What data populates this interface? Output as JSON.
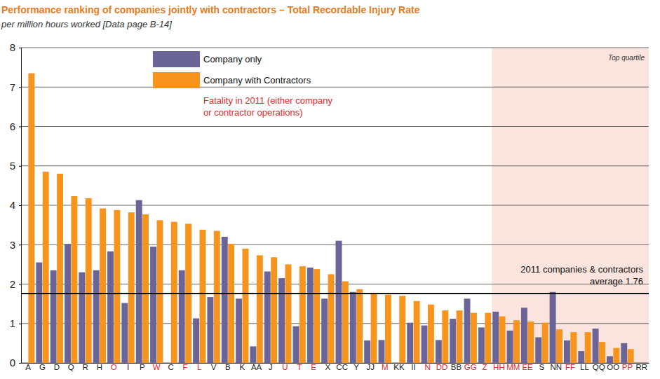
{
  "chart_data": {
    "type": "bar",
    "title": "Performance ranking of companies jointly with contractors – Total Recordable Injury Rate",
    "subtitle": "per million hours worked [Data page B-14]",
    "categories": [
      "A",
      "G",
      "D",
      "Q",
      "R",
      "H",
      "O",
      "I",
      "P",
      "W",
      "C",
      "F",
      "L",
      "V",
      "B",
      "K",
      "AA",
      "J",
      "U",
      "T",
      "E",
      "X",
      "CC",
      "Y",
      "JJ",
      "M",
      "KK",
      "II",
      "N",
      "DD",
      "BB",
      "GG",
      "Z",
      "HH",
      "MM",
      "EE",
      "S",
      "NN",
      "FF",
      "LL",
      "QQ",
      "OO",
      "PP",
      "RR"
    ],
    "fatality": [
      false,
      false,
      false,
      false,
      false,
      false,
      true,
      false,
      false,
      true,
      false,
      true,
      true,
      false,
      false,
      false,
      false,
      false,
      true,
      true,
      true,
      false,
      false,
      false,
      false,
      true,
      false,
      false,
      true,
      true,
      false,
      true,
      true,
      true,
      true,
      true,
      false,
      false,
      true,
      false,
      false,
      false,
      true,
      false
    ],
    "fatality_note": {
      "text": [
        "Fatality in 2011 (either company",
        "or contractor operations)"
      ],
      "color": "#e3262b"
    },
    "series": [
      {
        "name": "Company only",
        "color": "#6b6597",
        "values": [
          null,
          2.55,
          2.35,
          3.02,
          2.3,
          2.35,
          2.83,
          1.52,
          4.13,
          2.95,
          null,
          2.35,
          1.13,
          1.67,
          3.2,
          1.63,
          0.42,
          2.32,
          2.15,
          0.93,
          2.42,
          1.63,
          3.1,
          1.8,
          0.57,
          0.58,
          null,
          1.02,
          0.95,
          0.58,
          1.12,
          1.63,
          0.9,
          1.3,
          0.82,
          1.4,
          0.65,
          1.8,
          0.57,
          0.3,
          0.87,
          0.17,
          0.5,
          null
        ]
      },
      {
        "name": "Company with Contractors",
        "color": "#f7941d",
        "values": [
          7.35,
          4.85,
          4.8,
          4.23,
          4.18,
          3.92,
          3.88,
          3.82,
          3.77,
          3.62,
          3.58,
          3.53,
          3.38,
          3.35,
          3.02,
          2.9,
          2.73,
          2.68,
          2.5,
          2.45,
          2.38,
          2.25,
          2.07,
          1.87,
          1.78,
          1.73,
          1.7,
          1.57,
          1.48,
          1.33,
          1.33,
          1.27,
          1.27,
          1.18,
          1.08,
          1.05,
          1.02,
          0.85,
          0.78,
          0.78,
          0.53,
          0.38,
          0.35,
          null
        ]
      }
    ],
    "reference_line": {
      "value": 1.76,
      "label": [
        "2011 companies & contractors",
        "average 1.76"
      ]
    },
    "top_quartile": {
      "label": "Top quartile",
      "from": "HH",
      "to": "RR"
    },
    "ylim": [
      0,
      8
    ],
    "yticks": [
      0,
      1,
      2,
      3,
      4,
      5,
      6,
      7,
      8
    ],
    "grid": true,
    "legend": "top-left"
  }
}
